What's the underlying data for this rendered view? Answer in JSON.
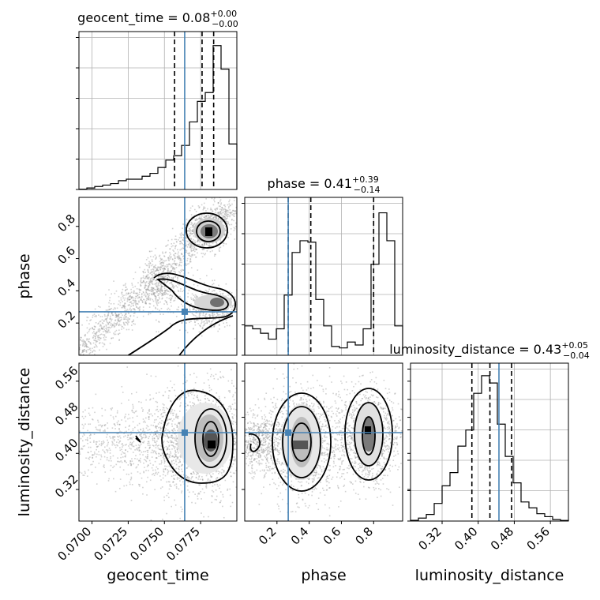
{
  "chart_data": {
    "type": "corner",
    "parameters": [
      "geocent_time",
      "phase",
      "luminosity_distance"
    ],
    "ranges": {
      "geocent_time": [
        0.0691,
        0.08
      ],
      "phase": [
        0.0,
        0.98
      ],
      "luminosity_distance": [
        0.25,
        0.6
      ]
    },
    "ticks": {
      "geocent_time": {
        "values": [
          0.07,
          0.0725,
          0.075,
          0.0775
        ],
        "labels": [
          "0.0700",
          "0.0725",
          "0.0750",
          "0.0775"
        ]
      },
      "phase": {
        "values": [
          0.2,
          0.4,
          0.6,
          0.8
        ],
        "labels": [
          "0.2",
          "0.4",
          "0.6",
          "0.8"
        ]
      },
      "luminosity_distance": {
        "values": [
          0.32,
          0.4,
          0.48,
          0.56
        ],
        "labels": [
          "0.32",
          "0.40",
          "0.48",
          "0.56"
        ]
      }
    },
    "truths": {
      "geocent_time": 0.0764,
      "phase": 0.27,
      "luminosity_distance": 0.446
    },
    "diag_titles": [
      {
        "name": "geocent_time",
        "text": "geocent_time = 0.08",
        "sup": "+0.00",
        "sub": "−0.00"
      },
      {
        "name": "phase",
        "text": "phase = 0.41",
        "sup": "+0.39",
        "sub": "−0.14"
      },
      {
        "name": "luminosity_distance",
        "text": "luminosity_distance = 0.43",
        "sup": "+0.05",
        "sub": "−0.04"
      }
    ],
    "quantiles": {
      "geocent_time": [
        0.0757,
        0.0776,
        0.0784
      ],
      "phase": [
        0.27,
        0.41,
        0.8
      ],
      "luminosity_distance": [
        0.386,
        0.426,
        0.474
      ]
    },
    "histograms": {
      "geocent_time": {
        "edges_range": [
          0.0691,
          0.08
        ],
        "bins": 20,
        "counts": [
          0.002,
          0.01,
          0.02,
          0.03,
          0.04,
          0.06,
          0.07,
          0.07,
          0.09,
          0.11,
          0.15,
          0.2,
          0.23,
          0.3,
          0.46,
          0.6,
          0.66,
          0.98,
          0.82,
          0.31
        ]
      },
      "phase": {
        "edges_range": [
          0.0,
          0.98
        ],
        "bins": 20,
        "counts": [
          0.2,
          0.18,
          0.15,
          0.11,
          0.18,
          0.41,
          0.7,
          0.78,
          0.77,
          0.38,
          0.2,
          0.06,
          0.05,
          0.09,
          0.07,
          0.18,
          0.62,
          0.97,
          0.78,
          0.2
        ]
      },
      "luminosity_distance": {
        "edges_range": [
          0.25,
          0.6
        ],
        "bins": 20,
        "counts": [
          0.005,
          0.02,
          0.045,
          0.12,
          0.24,
          0.33,
          0.51,
          0.62,
          0.87,
          0.99,
          0.94,
          0.66,
          0.44,
          0.26,
          0.13,
          0.09,
          0.05,
          0.03,
          0.01,
          0.004
        ]
      }
    },
    "xlabels": [
      "geocent_time",
      "phase",
      "luminosity_distance"
    ],
    "ylabels": [
      "",
      "phase",
      "luminosity_distance"
    ]
  }
}
